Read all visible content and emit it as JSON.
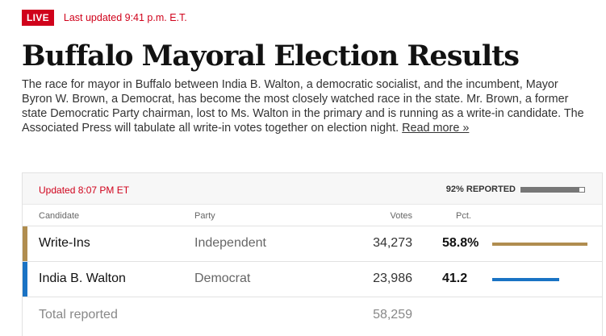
{
  "header": {
    "live_label": "LIVE",
    "last_updated": "Last updated 9:41 p.m. E.T.",
    "title": "Buffalo Mayoral Election Results",
    "description": "The race for mayor in Buffalo between India B. Walton, a democratic socialist, and the incumbent, Mayor Byron W. Brown, a Democrat, has become the most closely watched race in the state. Mr. Brown, a former state Democratic Party chairman, lost to Ms. Walton in the primary and is running as a write-in candidate. The Associated Press will tabulate all write-in votes together on election night.",
    "read_more": "Read more »"
  },
  "results": {
    "updated": "Updated 8:07 PM ET",
    "reported_label": "92% REPORTED",
    "reported_fraction": 0.92,
    "columns": {
      "candidate": "Candidate",
      "party": "Party",
      "votes": "Votes",
      "pct": "Pct."
    },
    "rows": [
      {
        "candidate": "Write-Ins",
        "party": "Independent",
        "votes": "34,273",
        "pct": "58.8%",
        "pct_value": 58.8,
        "color": "#b08d4f"
      },
      {
        "candidate": "India B. Walton",
        "party": "Democrat",
        "votes": "23,986",
        "pct": "41.2",
        "pct_value": 41.2,
        "color": "#1a73c4"
      }
    ],
    "total_label": "Total reported",
    "total_votes": "58,259"
  }
}
